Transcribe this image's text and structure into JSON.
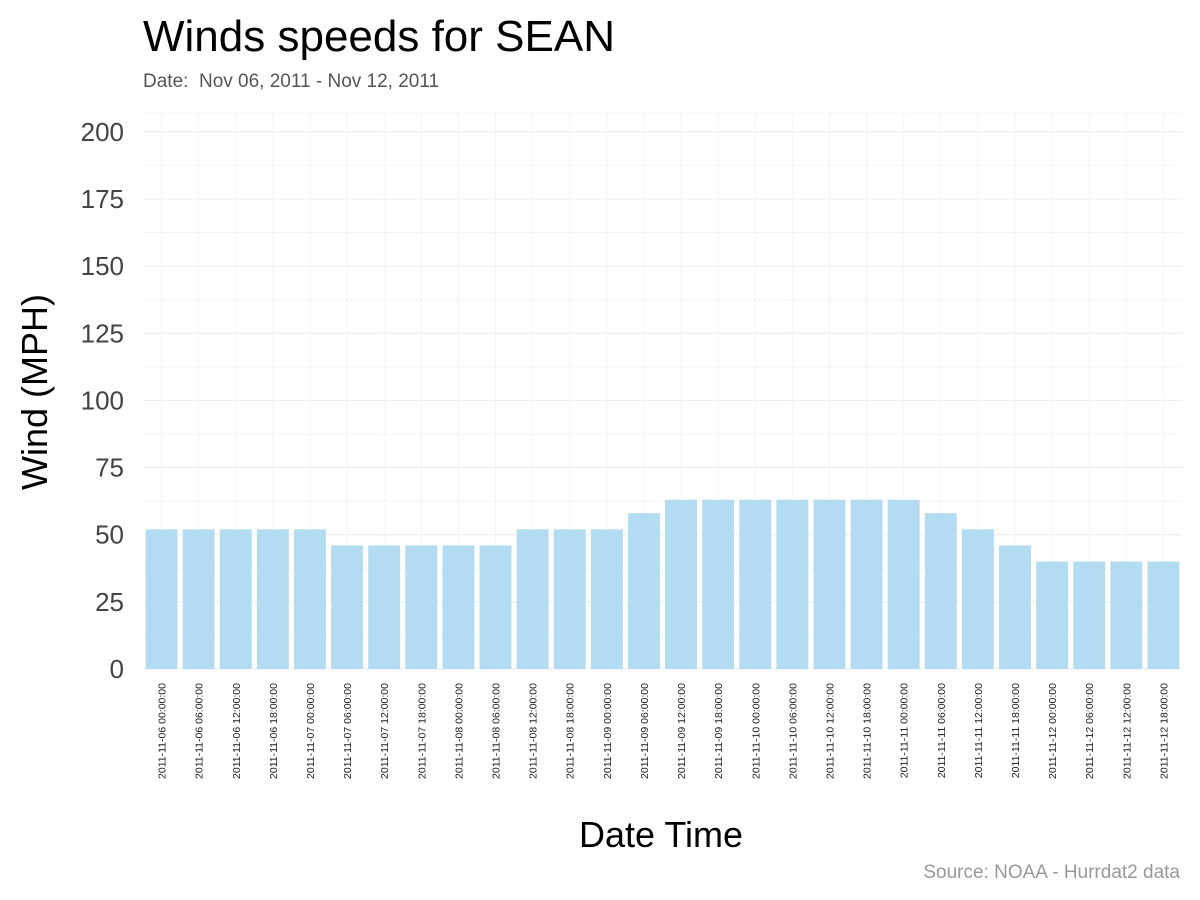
{
  "chart_data": {
    "type": "bar",
    "title": "Winds speeds for SEAN",
    "subtitle": "Date:  Nov 06, 2011 - Nov 12, 2011",
    "source": "Source: NOAA - Hurrdat2 data",
    "xlabel": "Date Time",
    "ylabel": "Wind (MPH)",
    "ylim": [
      0,
      207
    ],
    "yticks": [
      0,
      25,
      50,
      75,
      100,
      125,
      150,
      175,
      200
    ],
    "grid": true,
    "bar_color": "#b3dcf2",
    "categories": [
      "2011-11-06 00:00:00",
      "2011-11-06 06:00:00",
      "2011-11-06 12:00:00",
      "2011-11-06 18:00:00",
      "2011-11-07 00:00:00",
      "2011-11-07 06:00:00",
      "2011-11-07 12:00:00",
      "2011-11-07 18:00:00",
      "2011-11-08 00:00:00",
      "2011-11-08 06:00:00",
      "2011-11-08 12:00:00",
      "2011-11-08 18:00:00",
      "2011-11-09 00:00:00",
      "2011-11-09 06:00:00",
      "2011-11-09 12:00:00",
      "2011-11-09 18:00:00",
      "2011-11-10 00:00:00",
      "2011-11-10 06:00:00",
      "2011-11-10 12:00:00",
      "2011-11-10 18:00:00",
      "2011-11-11 00:00:00",
      "2011-11-11 06:00:00",
      "2011-11-11 12:00:00",
      "2011-11-11 18:00:00",
      "2011-11-12 00:00:00",
      "2011-11-12 06:00:00",
      "2011-11-12 12:00:00",
      "2011-11-12 18:00:00"
    ],
    "values": [
      52,
      52,
      52,
      52,
      52,
      46,
      46,
      46,
      46,
      46,
      52,
      52,
      52,
      58,
      63,
      63,
      63,
      63,
      63,
      63,
      63,
      58,
      52,
      46,
      40,
      40,
      40,
      40
    ]
  }
}
